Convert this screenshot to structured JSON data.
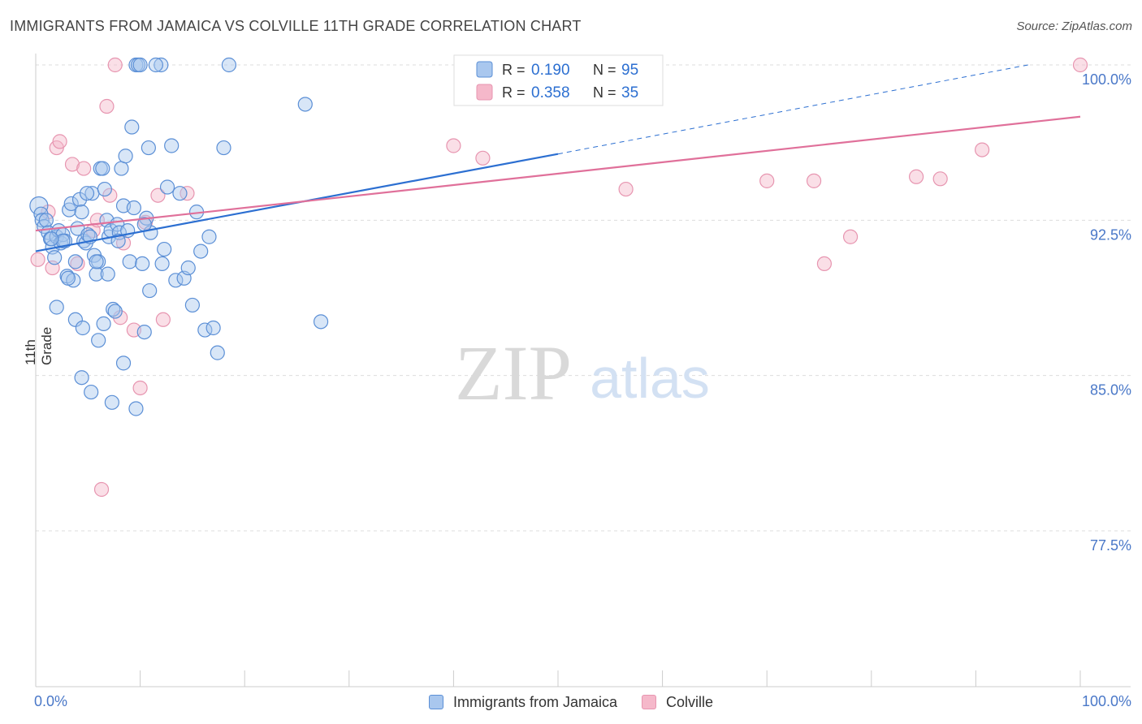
{
  "title": "IMMIGRANTS FROM JAMAICA VS COLVILLE 11TH GRADE CORRELATION CHART",
  "source": "Source: ZipAtlas.com",
  "watermark": {
    "zip": "ZIP",
    "atlas": "atlas"
  },
  "colors": {
    "blue_fill": "#a9c7ee",
    "blue_stroke": "#5b8fd6",
    "blue_line": "#2c6fd1",
    "pink_fill": "#f5b8ca",
    "pink_stroke": "#e795b0",
    "pink_line": "#e0709a",
    "grid": "#dddddd",
    "tick_label": "#4a78c8"
  },
  "legend": {
    "rows": [
      {
        "r_label": "R =",
        "r_value": "0.190",
        "n_label": "N =",
        "n_value": "95"
      },
      {
        "r_label": "R =",
        "r_value": "0.358",
        "n_label": "N =",
        "n_value": "35"
      }
    ]
  },
  "chart_data": {
    "type": "scatter",
    "title": "IMMIGRANTS FROM JAMAICA VS COLVILLE 11TH GRADE CORRELATION CHART",
    "xlabel": "",
    "ylabel": "11th Grade",
    "xlim": [
      0,
      100
    ],
    "ylim": [
      70.0,
      101.5
    ],
    "x_tick_labels": [
      "0.0%",
      "100.0%"
    ],
    "y_ticks": [
      77.5,
      85.0,
      92.5,
      100.0
    ],
    "y_tick_labels": [
      "77.5%",
      "85.0%",
      "92.5%",
      "100.0%"
    ],
    "grid": true,
    "legend_position": "bottom",
    "series": [
      {
        "name": "Immigrants from Jamaica",
        "color": "blue",
        "r": 0.19,
        "n": 95,
        "trend": {
          "x0": 0,
          "y0": 91.0,
          "x1": 50,
          "y1": 95.7,
          "dash_to_x": 95,
          "dash_to_y": 100.0
        },
        "points": [
          [
            0.3,
            93.2
          ],
          [
            0.5,
            92.8
          ],
          [
            0.6,
            92.5
          ],
          [
            0.8,
            92.2
          ],
          [
            1.0,
            92.5
          ],
          [
            1.2,
            91.9
          ],
          [
            1.4,
            91.6
          ],
          [
            1.6,
            91.2
          ],
          [
            1.8,
            90.7
          ],
          [
            2.0,
            91.7
          ],
          [
            2.2,
            92.0
          ],
          [
            2.4,
            91.4
          ],
          [
            2.6,
            91.8
          ],
          [
            2.8,
            91.5
          ],
          [
            3.0,
            89.8
          ],
          [
            3.2,
            93.0
          ],
          [
            3.4,
            93.3
          ],
          [
            3.6,
            89.6
          ],
          [
            3.8,
            90.5
          ],
          [
            4.0,
            92.1
          ],
          [
            4.2,
            93.5
          ],
          [
            4.4,
            92.9
          ],
          [
            4.6,
            91.5
          ],
          [
            4.8,
            91.4
          ],
          [
            5.0,
            91.8
          ],
          [
            5.2,
            91.7
          ],
          [
            5.4,
            93.8
          ],
          [
            5.6,
            90.8
          ],
          [
            5.8,
            89.9
          ],
          [
            6.0,
            90.5
          ],
          [
            6.2,
            95.0
          ],
          [
            6.4,
            95.0
          ],
          [
            6.6,
            94.0
          ],
          [
            6.8,
            92.5
          ],
          [
            7.0,
            91.7
          ],
          [
            7.2,
            92.0
          ],
          [
            7.4,
            88.2
          ],
          [
            7.6,
            88.1
          ],
          [
            7.8,
            92.3
          ],
          [
            8.0,
            91.9
          ],
          [
            8.2,
            95.0
          ],
          [
            8.4,
            93.2
          ],
          [
            8.6,
            95.6
          ],
          [
            8.8,
            92.0
          ],
          [
            9.0,
            90.5
          ],
          [
            9.2,
            97.0
          ],
          [
            9.4,
            93.1
          ],
          [
            9.6,
            100.0
          ],
          [
            9.8,
            100.0
          ],
          [
            10.0,
            100.0
          ],
          [
            10.2,
            90.4
          ],
          [
            10.4,
            87.1
          ],
          [
            10.6,
            92.6
          ],
          [
            10.8,
            96.0
          ],
          [
            11.0,
            91.9
          ],
          [
            12.0,
            100.0
          ],
          [
            12.3,
            91.1
          ],
          [
            12.6,
            94.1
          ],
          [
            13.0,
            96.1
          ],
          [
            13.4,
            89.6
          ],
          [
            13.8,
            93.8
          ],
          [
            14.2,
            89.7
          ],
          [
            14.6,
            90.2
          ],
          [
            15.0,
            88.4
          ],
          [
            15.4,
            92.9
          ],
          [
            15.8,
            91.0
          ],
          [
            16.2,
            87.2
          ],
          [
            16.6,
            91.7
          ],
          [
            17.0,
            87.3
          ],
          [
            17.4,
            86.1
          ],
          [
            18.0,
            96.0
          ],
          [
            18.5,
            100.0
          ],
          [
            2.0,
            88.3
          ],
          [
            3.8,
            87.7
          ],
          [
            4.5,
            87.3
          ],
          [
            5.3,
            84.2
          ],
          [
            6.0,
            86.7
          ],
          [
            6.5,
            87.5
          ],
          [
            7.3,
            83.7
          ],
          [
            8.4,
            85.6
          ],
          [
            9.6,
            83.4
          ],
          [
            10.4,
            92.3
          ],
          [
            10.9,
            89.1
          ],
          [
            11.5,
            100.0
          ],
          [
            12.1,
            90.4
          ],
          [
            25.8,
            98.1
          ],
          [
            27.3,
            87.6
          ],
          [
            4.4,
            84.9
          ],
          [
            6.9,
            89.9
          ],
          [
            5.8,
            90.5
          ],
          [
            2.6,
            91.5
          ],
          [
            3.1,
            89.7
          ],
          [
            4.9,
            93.8
          ],
          [
            1.5,
            91.6
          ],
          [
            7.9,
            91.5
          ]
        ]
      },
      {
        "name": "Colville",
        "color": "pink",
        "r": 0.358,
        "n": 35,
        "trend": {
          "x0": 0,
          "y0": 92.0,
          "x1": 100,
          "y1": 97.5
        },
        "points": [
          [
            0.2,
            90.6
          ],
          [
            1.2,
            92.9
          ],
          [
            1.6,
            90.2
          ],
          [
            2.0,
            96.0
          ],
          [
            2.3,
            96.3
          ],
          [
            3.5,
            95.2
          ],
          [
            4.0,
            90.4
          ],
          [
            4.6,
            95.0
          ],
          [
            5.5,
            92.0
          ],
          [
            5.9,
            92.5
          ],
          [
            6.3,
            79.5
          ],
          [
            6.8,
            98.0
          ],
          [
            7.1,
            93.7
          ],
          [
            7.6,
            100.0
          ],
          [
            8.1,
            87.8
          ],
          [
            8.4,
            91.4
          ],
          [
            9.4,
            87.2
          ],
          [
            10.0,
            84.4
          ],
          [
            10.5,
            92.4
          ],
          [
            11.7,
            93.7
          ],
          [
            12.2,
            87.7
          ],
          [
            14.5,
            93.8
          ],
          [
            40.0,
            96.1
          ],
          [
            42.8,
            95.5
          ],
          [
            49.3,
            100.0
          ],
          [
            50.0,
            100.0
          ],
          [
            56.5,
            94.0
          ],
          [
            70.0,
            94.4
          ],
          [
            74.5,
            94.4
          ],
          [
            75.5,
            90.4
          ],
          [
            78.0,
            91.7
          ],
          [
            84.3,
            94.6
          ],
          [
            86.6,
            94.5
          ],
          [
            90.6,
            95.9
          ],
          [
            100.0,
            100.0
          ]
        ]
      }
    ]
  },
  "bottom_legend": [
    {
      "label": "Immigrants from Jamaica"
    },
    {
      "label": "Colville"
    }
  ]
}
